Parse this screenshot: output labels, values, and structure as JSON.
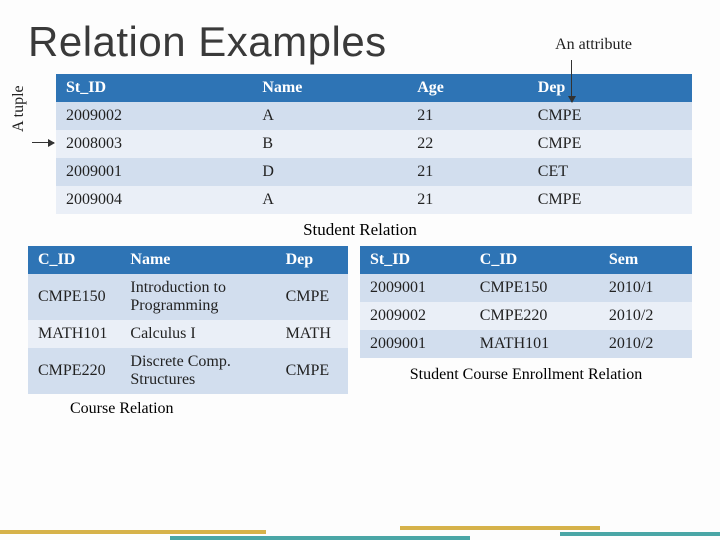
{
  "title": "Relation Examples",
  "attribute_label": "An attribute",
  "tuple_label": "A tuple",
  "colors": {
    "header_bg": "#2e74b5",
    "row_odd": "#d2deee",
    "row_even": "#eaeff7",
    "stripe_gold": "#d6b24a",
    "stripe_teal": "#4aa6a6"
  },
  "student": {
    "caption": "Student Relation",
    "columns": [
      "St_ID",
      "Name",
      "Age",
      "Dep"
    ],
    "rows": [
      [
        "2009002",
        "A",
        "21",
        "CMPE"
      ],
      [
        "2008003",
        "B",
        "22",
        "CMPE"
      ],
      [
        "2009001",
        "D",
        "21",
        "CET"
      ],
      [
        "2009004",
        "A",
        "21",
        "CMPE"
      ]
    ]
  },
  "course": {
    "caption": "Course Relation",
    "columns": [
      "C_ID",
      "Name",
      "Dep"
    ],
    "col_widths": [
      "84px",
      "150px",
      "70px"
    ],
    "rows": [
      [
        "CMPE150",
        "Introduction to Programming",
        "CMPE"
      ],
      [
        "MATH101",
        "Calculus I",
        "MATH"
      ],
      [
        "CMPE220",
        "Discrete Comp. Structures",
        "CMPE"
      ]
    ]
  },
  "enroll": {
    "caption": "Student Course Enrollment Relation",
    "columns": [
      "St_ID",
      "C_ID",
      "Sem"
    ],
    "rows": [
      [
        "2009001",
        "CMPE150",
        "2010/1"
      ],
      [
        "2009002",
        "CMPE220",
        "2010/2"
      ],
      [
        "2009001",
        "MATH101",
        "2010/2"
      ]
    ]
  }
}
